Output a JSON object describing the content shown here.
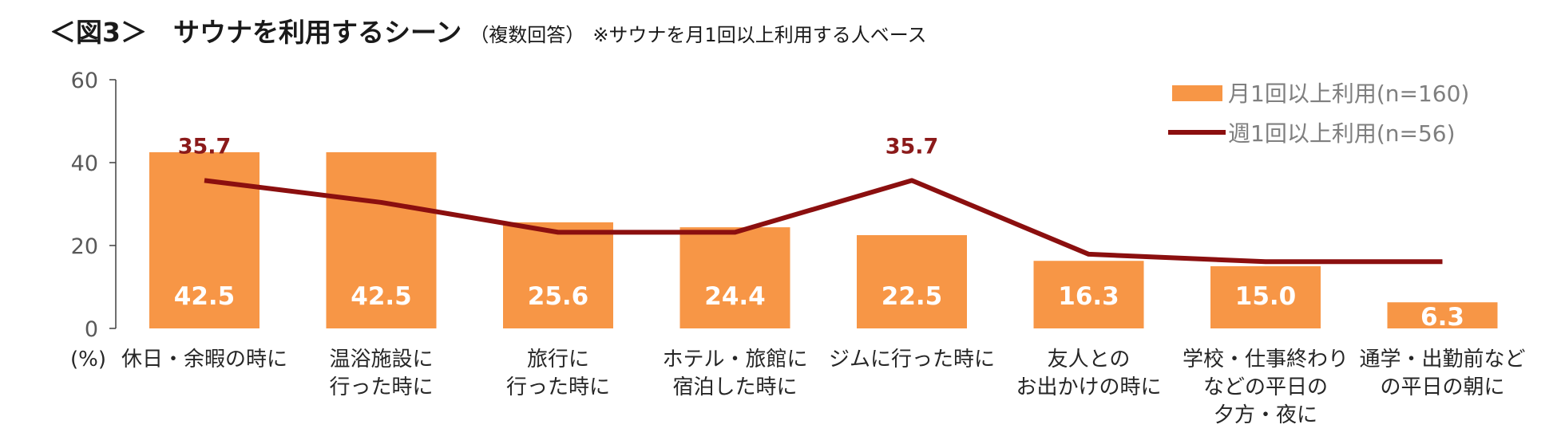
{
  "title": {
    "main": "＜図3＞　サウナを利用するシーン",
    "sub": "（複数回答）",
    "note": "※サウナを月1回以上利用する人ベース"
  },
  "colors": {
    "bar": "#f79646",
    "line": "#8b0f0f",
    "axis": "#404040"
  },
  "chart_data": {
    "type": "bar",
    "categories": [
      [
        "休日・余暇の時に"
      ],
      [
        "温浴施設に",
        "行った時に"
      ],
      [
        "旅行に",
        "行った時に"
      ],
      [
        "ホテル・旅館に",
        "宿泊した時に"
      ],
      [
        "ジムに行った時に"
      ],
      [
        "友人との",
        "お出かけの時に"
      ],
      [
        "学校・仕事終わり",
        "などの平日の",
        "夕方・夜に"
      ],
      [
        "通学・出勤前など",
        "の平日の朝に"
      ]
    ],
    "series": [
      {
        "name": "月1回以上利用(n=160)",
        "type": "bar",
        "values": [
          42.5,
          42.5,
          25.6,
          24.4,
          22.5,
          16.3,
          15.0,
          6.3
        ],
        "labels": [
          "42.5",
          "42.5",
          "25.6",
          "24.4",
          "22.5",
          "16.3",
          "15.0",
          "6.3"
        ]
      },
      {
        "name": "週1回以上利用(n=56)",
        "type": "line",
        "values": [
          35.7,
          30.4,
          23.2,
          23.2,
          35.7,
          17.9,
          16.1,
          16.1
        ],
        "labels": [
          "35.7",
          "",
          "",
          "",
          "35.7",
          "",
          "",
          ""
        ]
      }
    ],
    "yticks": [
      "0",
      "20",
      "40",
      "60"
    ],
    "ylim": [
      0,
      60
    ],
    "ylabel": "(%)",
    "legend_position": "top-right"
  }
}
